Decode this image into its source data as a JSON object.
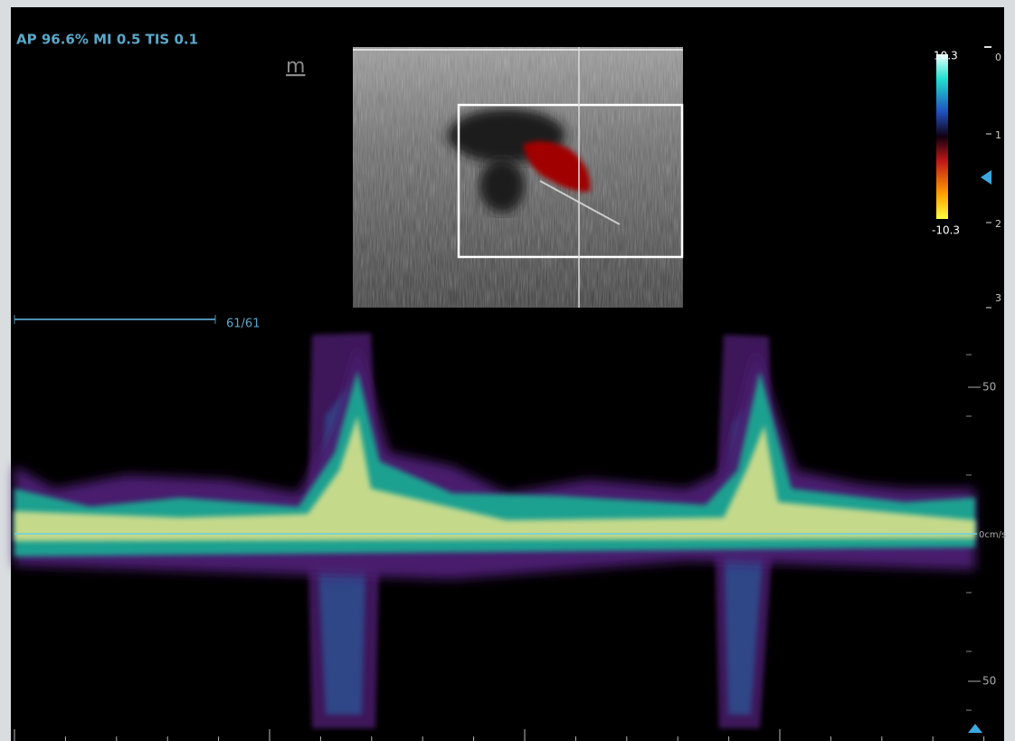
{
  "header": {
    "info": "AP 96.6%  MI 0.5 TIS 0.1",
    "mode_icon": "m"
  },
  "color_scale": {
    "max": "10.3",
    "min": "-10.3"
  },
  "depth_scale": {
    "labels": [
      "0",
      "1",
      "2",
      "3"
    ]
  },
  "sweep": {
    "frame": "61/61"
  },
  "velocity_scale": {
    "labels": [
      "50",
      "0cm/s",
      "50"
    ]
  }
}
